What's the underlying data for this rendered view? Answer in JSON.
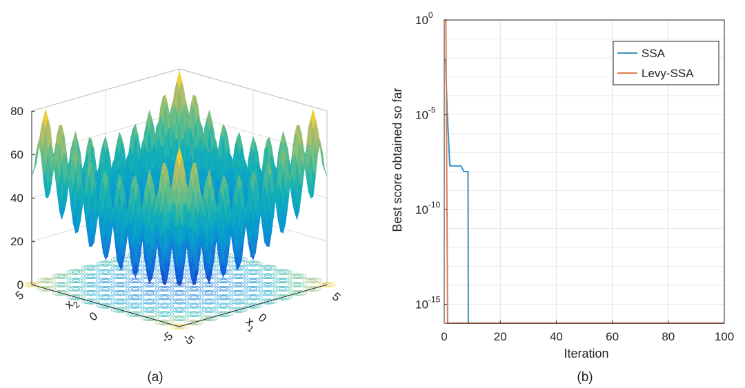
{
  "panel_a_label": "(a)",
  "panel_b_label": "(b)",
  "chart_data": [
    {
      "type": "surface",
      "panel": "(a)",
      "function": "Rastrigin",
      "x": {
        "label": "x",
        "subscript": "1",
        "ticks": [
          "-5",
          "0",
          "5"
        ],
        "range": [
          -5,
          5
        ]
      },
      "y": {
        "label": "x",
        "subscript": "2",
        "ticks": [
          "-5",
          "0",
          "5"
        ],
        "range": [
          -5,
          5
        ]
      },
      "z": {
        "ticks": [
          "0",
          "20",
          "40",
          "60",
          "80"
        ],
        "range": [
          0,
          80
        ]
      },
      "colormap": "parula",
      "base_contour": true,
      "grid": true
    },
    {
      "type": "line",
      "panel": "(b)",
      "xlabel": "Iteration",
      "ylabel": "Best score obtained so far",
      "xlim": [
        0,
        100
      ],
      "ylim": [
        1e-16,
        1
      ],
      "yscale": "log",
      "x_ticks": [
        "0",
        "20",
        "40",
        "60",
        "80",
        "100"
      ],
      "y_ticks": [
        {
          "base": "10",
          "exp": "0",
          "value": 1
        },
        {
          "base": "10",
          "exp": "-5",
          "value": 1e-05
        },
        {
          "base": "10",
          "exp": "-10",
          "value": 1e-10
        },
        {
          "base": "10",
          "exp": "-15",
          "value": 1e-15
        }
      ],
      "grid": true,
      "legend_position": "top-right",
      "series": [
        {
          "name": "SSA",
          "color": "#3a8fc0",
          "points": [
            [
              0,
              0.008
            ],
            [
              0.5,
              0.008
            ],
            [
              1,
              2e-05
            ],
            [
              2,
              2e-08
            ],
            [
              6,
              2e-08
            ],
            [
              7,
              1e-08
            ],
            [
              8.5,
              1e-08
            ],
            [
              8.6,
              1e-16
            ],
            [
              100,
              1e-16
            ]
          ]
        },
        {
          "name": "Levy-SSA",
          "color": "#e07b4c",
          "points": [
            [
              0,
              1
            ],
            [
              0.6,
              1
            ],
            [
              1.2,
              1e-16
            ],
            [
              100,
              1e-16
            ]
          ]
        }
      ]
    }
  ]
}
